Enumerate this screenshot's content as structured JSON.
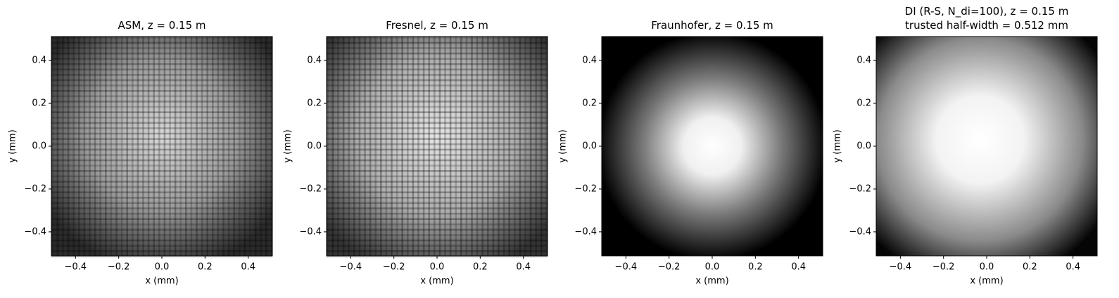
{
  "chart_data": [
    {
      "type": "image",
      "title": "ASM, z = 0.15 m",
      "xlabel": "x (mm)",
      "ylabel": "y (mm)",
      "xlim": [
        -0.512,
        0.512
      ],
      "ylim": [
        -0.512,
        0.512
      ],
      "xticks": [
        {
          "value": -0.4,
          "label": "−0.4"
        },
        {
          "value": -0.2,
          "label": "−0.2"
        },
        {
          "value": 0,
          "label": "0.0"
        },
        0.2,
        0.4
      ],
      "yticks": [
        {
          "value": -0.4,
          "label": "−0.4"
        },
        {
          "value": -0.2,
          "label": "−0.2"
        },
        {
          "value": 0,
          "label": "0.0"
        },
        0.2,
        0.4
      ]
    },
    {
      "type": "image",
      "title": "Fresnel, z = 0.15 m",
      "xlabel": "x (mm)",
      "ylabel": "y (mm)",
      "xlim": [
        -0.512,
        0.512
      ],
      "ylim": [
        -0.512,
        0.512
      ],
      "xticks": [
        {
          "value": -0.4,
          "label": "−0.4"
        },
        {
          "value": -0.2,
          "label": "−0.2"
        },
        {
          "value": 0,
          "label": "0.0"
        },
        0.2,
        0.4
      ],
      "yticks": [
        {
          "value": -0.4,
          "label": "−0.4"
        },
        {
          "value": -0.2,
          "label": "−0.2"
        },
        {
          "value": 0,
          "label": "0.0"
        },
        0.2,
        0.4
      ]
    },
    {
      "type": "image",
      "title": "Fraunhofer, z = 0.15 m",
      "xlabel": "x (mm)",
      "ylabel": "y (mm)",
      "xlim": [
        -0.512,
        0.512
      ],
      "ylim": [
        -0.512,
        0.512
      ],
      "xticks": [
        {
          "value": -0.4,
          "label": "−0.4"
        },
        {
          "value": -0.2,
          "label": "−0.2"
        },
        {
          "value": 0,
          "label": "0.0"
        },
        0.2,
        0.4
      ],
      "yticks": [
        {
          "value": -0.4,
          "label": "−0.4"
        },
        {
          "value": -0.2,
          "label": "−0.2"
        },
        {
          "value": 0,
          "label": "0.0"
        },
        0.2,
        0.4
      ]
    },
    {
      "type": "image",
      "title": "DI (R-S, N_di=100), z = 0.15 m\ntrusted half-width = 0.512 mm",
      "xlabel": "x (mm)",
      "ylabel": "y (mm)",
      "xlim": [
        -0.512,
        0.512
      ],
      "ylim": [
        -0.512,
        0.512
      ],
      "xticks": [
        {
          "value": -0.4,
          "label": "−0.4"
        },
        {
          "value": -0.2,
          "label": "−0.2"
        },
        {
          "value": 0,
          "label": "0.0"
        },
        0.2,
        0.4
      ],
      "yticks": [
        {
          "value": -0.4,
          "label": "−0.4"
        },
        {
          "value": -0.2,
          "label": "−0.2"
        },
        {
          "value": 0,
          "label": "0.0"
        },
        0.2,
        0.4
      ]
    }
  ]
}
